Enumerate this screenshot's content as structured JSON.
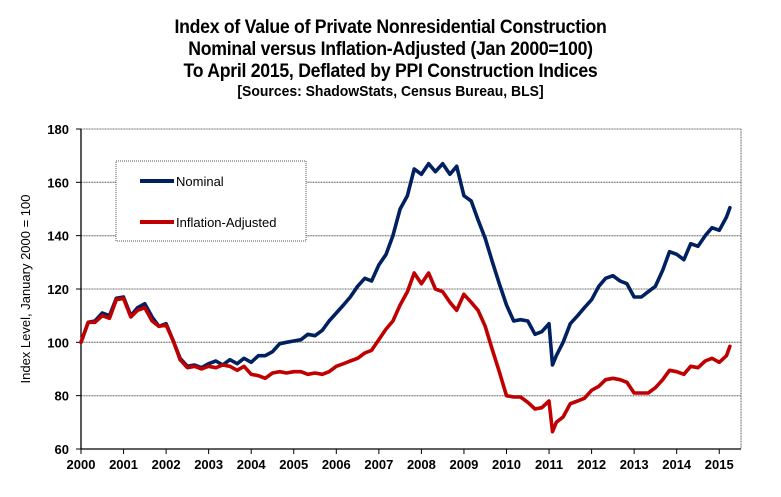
{
  "chart_data": {
    "type": "line",
    "title": "Index of Value of Private Nonresidential Construction",
    "title_lines": [
      "Index of Value of Private Nonresidential Construction",
      "Nominal versus Inflation-Adjusted  (Jan 2000=100)",
      "To April 2015, Deflated by PPI Construction Indices"
    ],
    "subtitle": "[Sources: ShadowStats, Census Bureau, BLS]",
    "xlabel": "",
    "ylabel": "Index Level, January 2000 = 100",
    "xlim": [
      2000,
      2015.5
    ],
    "ylim": [
      60,
      180
    ],
    "x_ticks": [
      2000,
      2001,
      2002,
      2003,
      2004,
      2005,
      2006,
      2007,
      2008,
      2009,
      2010,
      2011,
      2012,
      2013,
      2014,
      2015
    ],
    "x_tick_labels": [
      "2000",
      "2001",
      "2002",
      "2003",
      "2004",
      "2005",
      "2006",
      "2007",
      "2008",
      "2009",
      "2010",
      "2011",
      "2012",
      "2013",
      "2014",
      "2015"
    ],
    "y_ticks": [
      60,
      80,
      100,
      120,
      140,
      160,
      180
    ],
    "y_tick_labels": [
      "60",
      "80",
      "100",
      "120",
      "140",
      "160",
      "180"
    ],
    "grid": "horizontal",
    "legend_position": "top-left",
    "legend": [
      "Nominal",
      "Inflation-Adjusted"
    ],
    "x": [
      2000.0,
      2000.17,
      2000.33,
      2000.5,
      2000.67,
      2000.83,
      2001.0,
      2001.17,
      2001.33,
      2001.5,
      2001.67,
      2001.83,
      2002.0,
      2002.17,
      2002.33,
      2002.5,
      2002.67,
      2002.83,
      2003.0,
      2003.17,
      2003.33,
      2003.5,
      2003.67,
      2003.83,
      2004.0,
      2004.17,
      2004.33,
      2004.5,
      2004.67,
      2004.83,
      2005.0,
      2005.17,
      2005.33,
      2005.5,
      2005.67,
      2005.83,
      2006.0,
      2006.17,
      2006.33,
      2006.5,
      2006.67,
      2006.83,
      2007.0,
      2007.17,
      2007.33,
      2007.5,
      2007.67,
      2007.83,
      2008.0,
      2008.17,
      2008.33,
      2008.5,
      2008.67,
      2008.83,
      2009.0,
      2009.17,
      2009.33,
      2009.5,
      2009.67,
      2009.83,
      2010.0,
      2010.17,
      2010.33,
      2010.5,
      2010.67,
      2010.83,
      2011.0,
      2011.08,
      2011.17,
      2011.33,
      2011.5,
      2011.67,
      2011.83,
      2012.0,
      2012.17,
      2012.33,
      2012.5,
      2012.67,
      2012.83,
      2013.0,
      2013.17,
      2013.33,
      2013.5,
      2013.67,
      2013.83,
      2014.0,
      2014.17,
      2014.33,
      2014.5,
      2014.67,
      2014.83,
      2015.0,
      2015.17,
      2015.25
    ],
    "series": [
      {
        "name": "Nominal",
        "color": "#002060",
        "values": [
          100,
          107.5,
          108,
          111,
          110,
          116.5,
          117,
          110,
          113,
          114.5,
          109.5,
          106,
          107,
          100.5,
          94,
          91,
          91.5,
          90.5,
          92,
          93,
          91.5,
          93.5,
          92,
          94,
          92.5,
          95,
          95,
          96.5,
          99.5,
          100,
          100.5,
          101,
          103,
          102.5,
          104.5,
          108,
          111,
          114,
          117,
          121,
          124,
          123,
          129,
          133,
          140,
          150,
          155,
          165,
          163,
          167,
          164,
          167,
          163,
          166,
          155,
          153,
          146,
          139,
          130,
          122,
          114,
          108,
          108.5,
          108,
          103,
          104,
          107,
          91.5,
          95,
          100,
          107,
          110,
          113,
          116,
          121,
          124,
          125,
          123,
          122,
          117,
          117,
          119,
          121,
          127,
          134,
          133,
          131,
          137,
          136,
          140,
          143,
          142,
          147,
          150.5
        ]
      },
      {
        "name": "Inflation-Adjusted",
        "color": "#C00000",
        "values": [
          100,
          107.5,
          107.5,
          110,
          109,
          116,
          116.5,
          109.5,
          112,
          113,
          108,
          106,
          106.5,
          100.5,
          93.5,
          90.5,
          91,
          90,
          91,
          90.5,
          91.5,
          91,
          89.5,
          91,
          88,
          87.5,
          86.5,
          88.5,
          89,
          88.5,
          89,
          89,
          88,
          88.5,
          88,
          89,
          91,
          92,
          93,
          94,
          96,
          97,
          101,
          105,
          108,
          114,
          119,
          126,
          122,
          126,
          120,
          119,
          115,
          112,
          118,
          115,
          112,
          106,
          97,
          89,
          80,
          79.5,
          79.5,
          77.5,
          75,
          75.5,
          78,
          66.5,
          70,
          72,
          77,
          78,
          79,
          82,
          83.5,
          86,
          86.5,
          86,
          85,
          81,
          81,
          81,
          83,
          86,
          89.5,
          89,
          88,
          91,
          90.5,
          93,
          94,
          92.5,
          95,
          98.5
        ]
      }
    ]
  }
}
